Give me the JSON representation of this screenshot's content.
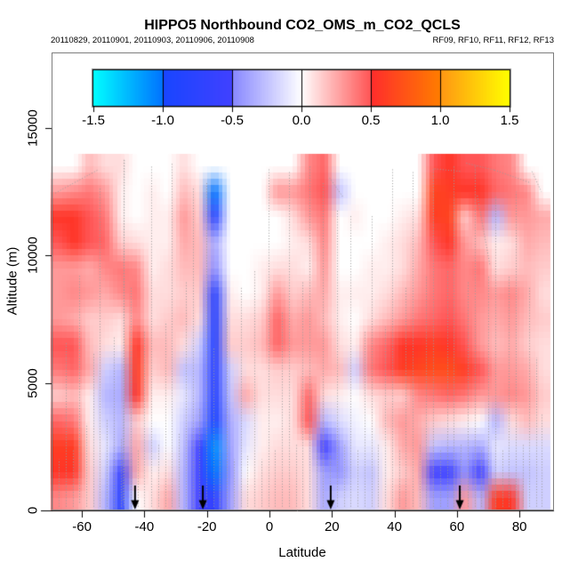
{
  "title": "HIPPO5 Northbound CO2_OMS_m_CO2_QCLS",
  "subtitle_left": "20110829, 20110901, 20110903, 20110906, 20110908",
  "subtitle_right": "RF09, RF10, RF11, RF12, RF13",
  "colors": {
    "background": "#ffffff",
    "frame": "#7d7d7d",
    "axis": "#000000",
    "track_dots": "#9b9b9b",
    "arrow": "#000000"
  },
  "chart_data": {
    "type": "heatmap",
    "title": "HIPPO5 Northbound CO2_OMS_m_CO2_QCLS",
    "xlabel": "Latitude",
    "ylabel": "Altitude (m)",
    "x_ticks": [
      -60,
      -40,
      -20,
      0,
      20,
      40,
      60,
      80
    ],
    "y_ticks": [
      0,
      5000,
      10000,
      15000
    ],
    "xlim": [
      -70,
      91
    ],
    "ylim": [
      0,
      18000
    ],
    "grid_lines": false,
    "colorbar": {
      "min": -1.5,
      "max": 1.5,
      "ticks": [
        -1.5,
        -1.0,
        -0.5,
        0.0,
        0.5,
        1.0,
        1.5
      ],
      "tick_labels": [
        "-1.5",
        "-1.0",
        "-0.5",
        "0.0",
        "0.5",
        "1.0",
        "1.5"
      ],
      "stops": [
        [
          -1.5,
          0,
          255,
          255
        ],
        [
          -1.0,
          0,
          115,
          255
        ],
        [
          -1.0,
          25,
          70,
          255
        ],
        [
          -0.5,
          65,
          65,
          255
        ],
        [
          -0.5,
          135,
          135,
          255
        ],
        [
          0.0,
          255,
          255,
          255
        ],
        [
          0.0,
          255,
          255,
          255
        ],
        [
          0.5,
          255,
          85,
          85
        ],
        [
          0.5,
          255,
          45,
          45
        ],
        [
          1.0,
          255,
          125,
          0
        ],
        [
          1.0,
          255,
          150,
          20
        ],
        [
          1.5,
          255,
          255,
          0
        ]
      ]
    },
    "grid": {
      "lat_start": -70,
      "lat_step": 5,
      "n_lat": 32,
      "alt_start": 0,
      "alt_step": 1000,
      "n_alt": 14,
      "rows_order": "bottom_to_top",
      "values": [
        [
          0.35,
          0.3,
          0.15,
          -0.3,
          -0.75,
          0.0,
          0.1,
          0.25,
          -0.3,
          -0.5,
          -0.7,
          -0.4,
          0.1,
          0.15,
          0.2,
          0.2,
          0.1,
          -0.35,
          -0.2,
          -0.15,
          -0.2,
          0.1,
          0.3,
          0.2,
          -0.4,
          -0.4,
          0.3,
          -0.3,
          0.6,
          0.55,
          -0.2,
          -0.2
        ],
        [
          0.55,
          0.55,
          0.15,
          -0.2,
          -0.6,
          0.25,
          0.05,
          0.1,
          -0.3,
          -0.55,
          -1.0,
          -0.45,
          0.0,
          0.1,
          0.15,
          0.15,
          0.1,
          -0.4,
          -0.45,
          -0.2,
          -0.25,
          0.05,
          0.15,
          0.25,
          -0.5,
          -0.55,
          -0.45,
          -0.5,
          -0.2,
          -0.25,
          -0.25,
          -0.2
        ],
        [
          0.6,
          0.6,
          0.1,
          -0.1,
          -0.35,
          0.25,
          -0.2,
          0.0,
          -0.25,
          -0.5,
          -1.1,
          -0.4,
          -0.1,
          0.05,
          0.1,
          0.1,
          0.1,
          -0.5,
          -0.4,
          -0.1,
          -0.1,
          0.05,
          0.25,
          0.3,
          -0.25,
          -0.3,
          -0.3,
          -0.35,
          -0.1,
          -0.15,
          -0.15,
          -0.15
        ],
        [
          0.45,
          0.4,
          0.05,
          -0.2,
          -0.3,
          0.15,
          0.0,
          0.0,
          -0.2,
          -0.4,
          -0.95,
          -0.35,
          -0.15,
          0.05,
          0.05,
          0.1,
          0.5,
          -0.3,
          -0.15,
          -0.05,
          0.0,
          0.2,
          0.3,
          0.25,
          0.15,
          0.1,
          0.05,
          0.0,
          -0.3,
          0.1,
          0.2,
          0.1
        ],
        [
          0.15,
          0.2,
          0.05,
          -0.3,
          -0.35,
          0.55,
          0.05,
          0.05,
          -0.1,
          -0.3,
          -0.8,
          -0.25,
          0.25,
          0.1,
          0.1,
          0.1,
          0.45,
          0.1,
          0.05,
          0.0,
          0.1,
          0.15,
          0.15,
          0.35,
          0.4,
          0.45,
          0.4,
          0.3,
          0.3,
          0.35,
          0.3,
          0.15
        ],
        [
          0.4,
          0.45,
          0.25,
          -0.2,
          -0.3,
          0.6,
          0.15,
          0.2,
          -0.25,
          -0.3,
          -0.75,
          -0.2,
          0.1,
          0.1,
          0.15,
          0.15,
          0.2,
          0.25,
          0.2,
          -0.2,
          0.4,
          0.5,
          0.6,
          0.65,
          0.7,
          0.7,
          0.6,
          0.5,
          0.3,
          0.3,
          0.25,
          0.1
        ],
        [
          0.5,
          0.5,
          0.2,
          0.1,
          0.05,
          0.55,
          0.2,
          0.2,
          0.1,
          -0.2,
          -0.8,
          0.15,
          0.15,
          0.2,
          0.45,
          0.3,
          0.3,
          0.3,
          0.1,
          0.05,
          0.35,
          0.45,
          0.55,
          0.55,
          0.6,
          0.55,
          0.5,
          0.3,
          0.2,
          0.25,
          0.15,
          0.1
        ],
        [
          0.3,
          0.25,
          0.15,
          0.15,
          0.1,
          0.35,
          0.1,
          0.15,
          0.2,
          0.1,
          -0.8,
          0.1,
          0.1,
          0.15,
          0.45,
          0.25,
          0.3,
          0.2,
          0.05,
          null,
          0.1,
          0.2,
          0.3,
          0.4,
          0.45,
          0.5,
          0.4,
          0.3,
          0.25,
          0.3,
          0.2,
          0.15
        ],
        [
          0.3,
          0.35,
          0.3,
          0.25,
          0.35,
          0.4,
          0.1,
          0.1,
          0.15,
          0.15,
          -0.75,
          0.05,
          null,
          0.05,
          0.3,
          0.15,
          0.2,
          0.25,
          0.05,
          0.05,
          0.05,
          0.1,
          0.2,
          0.3,
          0.4,
          0.45,
          0.35,
          0.35,
          0.3,
          0.35,
          0.25,
          0.1
        ],
        [
          0.3,
          0.3,
          0.25,
          0.35,
          0.4,
          0.35,
          0.05,
          0.1,
          0.2,
          0.2,
          -0.45,
          null,
          null,
          0.05,
          0.1,
          0.1,
          0.05,
          0.3,
          null,
          null,
          0.05,
          0.05,
          0.1,
          0.25,
          0.4,
          0.45,
          0.35,
          0.4,
          0.1,
          0.15,
          0.2,
          0.15
        ],
        [
          0.5,
          0.55,
          0.5,
          0.45,
          0.15,
          0.1,
          0.05,
          0.05,
          0.25,
          0.2,
          -0.35,
          null,
          null,
          null,
          null,
          0.05,
          0.1,
          0.35,
          null,
          null,
          null,
          0.05,
          0.1,
          0.2,
          0.5,
          0.55,
          0.3,
          0.2,
          0.05,
          0.1,
          0.25,
          0.2
        ],
        [
          0.55,
          0.55,
          0.5,
          0.4,
          0.05,
          null,
          0.05,
          0.05,
          0.3,
          0.15,
          -0.8,
          null,
          null,
          null,
          null,
          0.1,
          0.3,
          0.4,
          null,
          0.05,
          null,
          null,
          0.05,
          0.1,
          0.6,
          0.65,
          0.15,
          0.4,
          -0.3,
          0.3,
          0.3,
          0.25
        ],
        [
          0.3,
          0.35,
          0.4,
          0.3,
          0.05,
          null,
          0.05,
          null,
          0.2,
          0.1,
          -1.0,
          null,
          null,
          null,
          0.3,
          0.3,
          0.4,
          0.5,
          -0.25,
          null,
          null,
          null,
          null,
          null,
          0.65,
          0.6,
          0.55,
          0.55,
          0.45,
          0.4,
          0.35,
          null
        ],
        [
          null,
          null,
          0.2,
          0.1,
          0.1,
          null,
          null,
          null,
          0.1,
          null,
          null,
          null,
          null,
          null,
          null,
          null,
          0.35,
          0.45,
          null,
          null,
          null,
          null,
          null,
          null,
          0.5,
          0.55,
          0.5,
          0.5,
          0.4,
          0.35,
          null,
          null
        ]
      ]
    },
    "flight_marker_arrows_lat": [
      -43,
      -21.3,
      19.6,
      60.9
    ],
    "flight_tracks_vertical": [
      [
        -67.5,
        150,
        2000
      ],
      [
        -65.2,
        150,
        6600
      ],
      [
        -63,
        150,
        2400
      ],
      [
        -60.8,
        300,
        9200
      ],
      [
        -58.6,
        150,
        3400
      ],
      [
        -56.4,
        150,
        6200
      ],
      [
        -54.2,
        150,
        12700
      ],
      [
        -52,
        150,
        3600
      ],
      [
        -49.8,
        150,
        6800
      ],
      [
        -47.6,
        150,
        2800
      ],
      [
        -46.6,
        200,
        13800
      ],
      [
        -44.4,
        150,
        8800
      ],
      [
        -42.2,
        150,
        2400
      ],
      [
        -40,
        150,
        7000
      ],
      [
        -37.8,
        150,
        13500
      ],
      [
        -35.6,
        150,
        2600
      ],
      [
        -33.4,
        150,
        7400
      ],
      [
        -31.2,
        150,
        13600
      ],
      [
        -29,
        150,
        3000
      ],
      [
        -26.8,
        150,
        9000
      ],
      [
        -24.6,
        150,
        12700
      ],
      [
        -22.4,
        150,
        4000
      ],
      [
        -20.2,
        150,
        12900
      ],
      [
        -18,
        150,
        6400
      ],
      [
        -15.8,
        150,
        2400
      ],
      [
        -13.6,
        150,
        7600
      ],
      [
        -11.4,
        150,
        2000
      ],
      [
        -9.2,
        150,
        8800
      ],
      [
        -7,
        150,
        2200
      ],
      [
        -4.8,
        150,
        9400
      ],
      [
        -2.6,
        150,
        2000
      ],
      [
        -0.4,
        150,
        13400
      ],
      [
        1.8,
        150,
        2400
      ],
      [
        4,
        150,
        7800
      ],
      [
        6.2,
        150,
        13300
      ],
      [
        8.4,
        150,
        2600
      ],
      [
        10.6,
        150,
        9000
      ],
      [
        12.8,
        150,
        13500
      ],
      [
        15,
        150,
        2400
      ],
      [
        17.2,
        150,
        12900
      ],
      [
        19.4,
        150,
        2200
      ],
      [
        21.6,
        150,
        11800
      ],
      [
        23.8,
        150,
        2600
      ],
      [
        26,
        150,
        11600
      ],
      [
        28.2,
        150,
        2400
      ],
      [
        30.4,
        150,
        7000
      ],
      [
        32.6,
        150,
        11600
      ],
      [
        34.8,
        150,
        2600
      ],
      [
        37,
        150,
        7200
      ],
      [
        39.2,
        150,
        13400
      ],
      [
        41.4,
        150,
        2400
      ],
      [
        43.6,
        150,
        8800
      ],
      [
        45.8,
        150,
        13300
      ],
      [
        48,
        150,
        2600
      ],
      [
        50.2,
        150,
        9200
      ],
      [
        52.4,
        150,
        13400
      ],
      [
        54.6,
        150,
        2400
      ],
      [
        56.8,
        150,
        9400
      ],
      [
        59,
        150,
        13500
      ],
      [
        61.2,
        150,
        2600
      ],
      [
        63.4,
        150,
        9000
      ],
      [
        65.6,
        150,
        13500
      ],
      [
        67.8,
        150,
        2400
      ],
      [
        70,
        150,
        9200
      ],
      [
        72.2,
        150,
        12300
      ],
      [
        74.4,
        150,
        2400
      ],
      [
        76.6,
        150,
        9200
      ],
      [
        78.8,
        150,
        12500
      ],
      [
        81,
        150,
        2600
      ],
      [
        83.2,
        150,
        8800
      ],
      [
        85.4,
        150,
        6000
      ],
      [
        87,
        150,
        3800
      ]
    ],
    "flight_tracks_slanted": [
      [
        -68.5,
        12450,
        -55,
        13350
      ],
      [
        -46.8,
        400,
        -46.4,
        13800
      ],
      [
        19.2,
        13050,
        23.5,
        12300
      ],
      [
        52.8,
        13400,
        61,
        13300
      ],
      [
        63,
        13620,
        72,
        13350
      ],
      [
        72,
        13350,
        83.5,
        12850
      ],
      [
        66.5,
        12350,
        70.5,
        9650
      ],
      [
        84,
        13300,
        87,
        12500
      ]
    ]
  }
}
